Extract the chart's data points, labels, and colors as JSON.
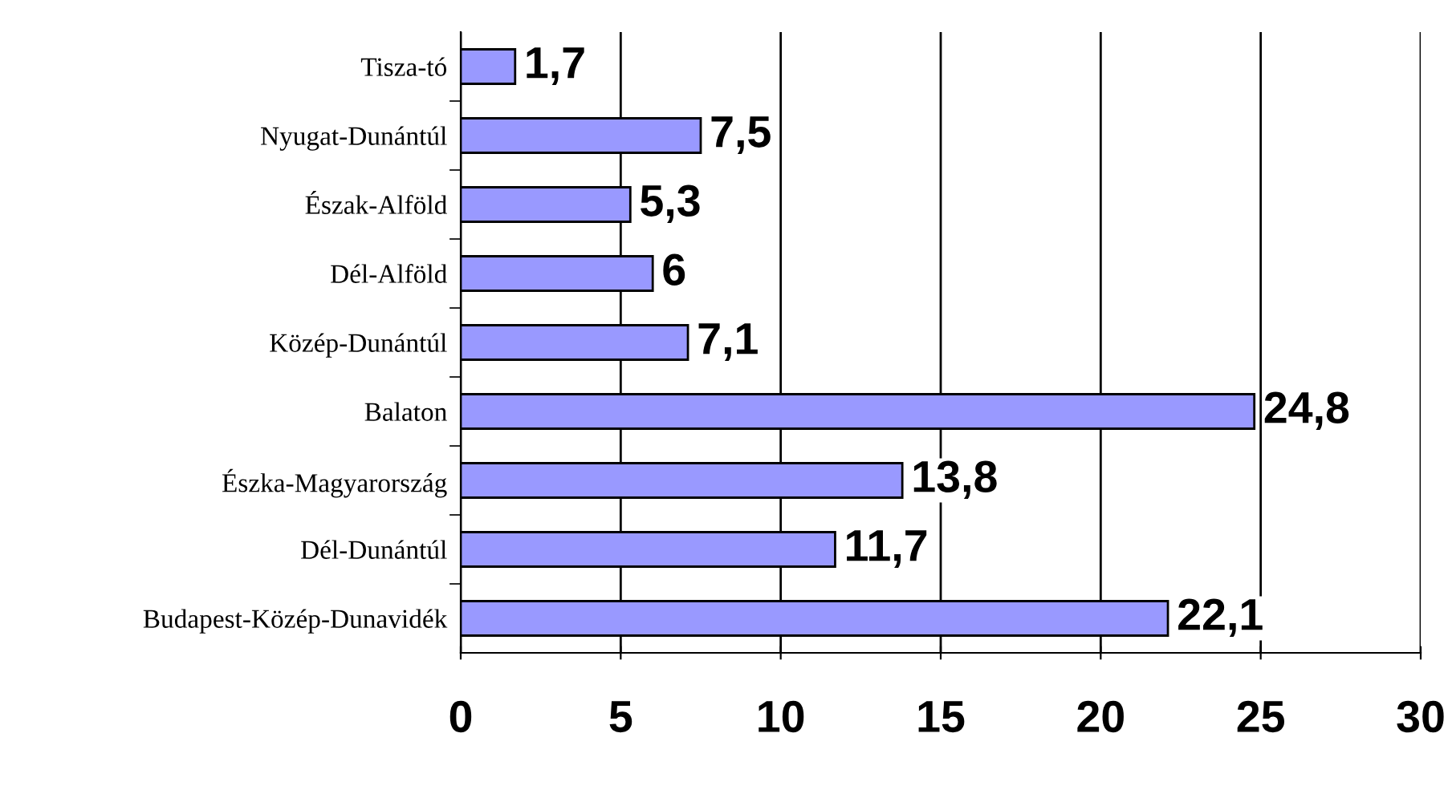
{
  "chart_data": {
    "type": "bar",
    "orientation": "horizontal",
    "categories": [
      "Tisza-tó",
      "Nyugat-Dunántúl",
      "Észak-Alföld",
      "Dél-Alföld",
      "Közép-Dunántúl",
      "Balaton",
      "Észka-Magyarország",
      "Dél-Dunántúl",
      "Budapest-Közép-Dunavidék"
    ],
    "values": [
      1.7,
      7.5,
      5.3,
      6,
      7.1,
      24.8,
      13.8,
      11.7,
      22.1
    ],
    "value_labels": [
      "1,7",
      "7,5",
      "5,3",
      "6",
      "7,1",
      "24,8",
      "13,8",
      "11,7",
      "22,1"
    ],
    "color": "#9999ff",
    "xlim": [
      0,
      30
    ],
    "xticks": [
      0,
      5,
      10,
      15,
      20,
      25,
      30
    ],
    "grid": "x",
    "legend": false
  }
}
